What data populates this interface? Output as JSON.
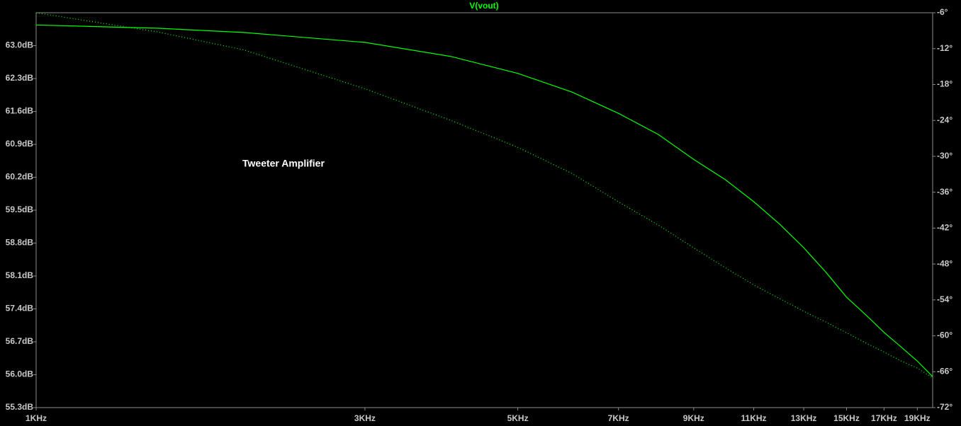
{
  "chart_data": {
    "type": "line",
    "title": "V(vout)",
    "annotation": "Tweeter Amplifier",
    "xscale": "log",
    "x": [
      1000,
      1500,
      2000,
      3000,
      4000,
      5000,
      6000,
      7000,
      8000,
      9000,
      10000,
      11000,
      12000,
      13000,
      14000,
      15000,
      16000,
      17000,
      18000,
      19000,
      20000
    ],
    "series": [
      {
        "name": "V(vout)",
        "color": "#00ff00",
        "style": "solid",
        "values": [
          63.44,
          63.37,
          63.28,
          63.07,
          62.77,
          62.41,
          62.01,
          61.56,
          61.11,
          60.58,
          60.15,
          59.68,
          59.2,
          58.7,
          58.18,
          57.65,
          57.27,
          56.9,
          56.59,
          56.29,
          55.96
        ]
      },
      {
        "axis": "y2",
        "color": "#00ff00",
        "style": "dotted",
        "values": [
          -6,
          -9.2,
          -12.2,
          -18.7,
          -24,
          -28.5,
          -32.9,
          -37.6,
          -41.5,
          -45.3,
          -48.6,
          -51.5,
          -53.8,
          -55.9,
          -57.7,
          -59.5,
          -61.2,
          -62.7,
          -64.2,
          -65.4,
          -67
        ]
      }
    ],
    "xlim": [
      1000,
      20000
    ],
    "xticks": [
      {
        "value": 1000,
        "label": "1KHz"
      },
      {
        "value": 3000,
        "label": "3KHz"
      },
      {
        "value": 5000,
        "label": "5KHz"
      },
      {
        "value": 7000,
        "label": "7KHz"
      },
      {
        "value": 9000,
        "label": "9KHz"
      },
      {
        "value": 11000,
        "label": "11KHz"
      },
      {
        "value": 13000,
        "label": "13KHz"
      },
      {
        "value": 15000,
        "label": "15KHz"
      },
      {
        "value": 17000,
        "label": "17KHz"
      },
      {
        "value": 19000,
        "label": "19KHz"
      }
    ],
    "ylim": [
      55.3,
      63.7
    ],
    "yticks": [
      {
        "value": 55.3,
        "label": "55.3dB"
      },
      {
        "value": 56.0,
        "label": "56.0dB"
      },
      {
        "value": 56.7,
        "label": "56.7dB"
      },
      {
        "value": 57.4,
        "label": "57.4dB"
      },
      {
        "value": 58.1,
        "label": "58.1dB"
      },
      {
        "value": 58.8,
        "label": "58.8dB"
      },
      {
        "value": 59.5,
        "label": "59.5dB"
      },
      {
        "value": 60.2,
        "label": "60.2dB"
      },
      {
        "value": 60.9,
        "label": "60.9dB"
      },
      {
        "value": 61.6,
        "label": "61.6dB"
      },
      {
        "value": 62.3,
        "label": "62.3dB"
      },
      {
        "value": 63.0,
        "label": "63.0dB"
      }
    ],
    "y2lim": [
      -72,
      -6
    ],
    "y2ticks": [
      {
        "value": -72,
        "label": "-72°"
      },
      {
        "value": -66,
        "label": "-66°"
      },
      {
        "value": -60,
        "label": "-60°"
      },
      {
        "value": -54,
        "label": "-54°"
      },
      {
        "value": -48,
        "label": "-48°"
      },
      {
        "value": -42,
        "label": "-42°"
      },
      {
        "value": -36,
        "label": "-36°"
      },
      {
        "value": -30,
        "label": "-30°"
      },
      {
        "value": -24,
        "label": "-24°"
      },
      {
        "value": -18,
        "label": "-18°"
      },
      {
        "value": -12,
        "label": "-12°"
      },
      {
        "value": -6,
        "label": "-6°"
      }
    ]
  }
}
